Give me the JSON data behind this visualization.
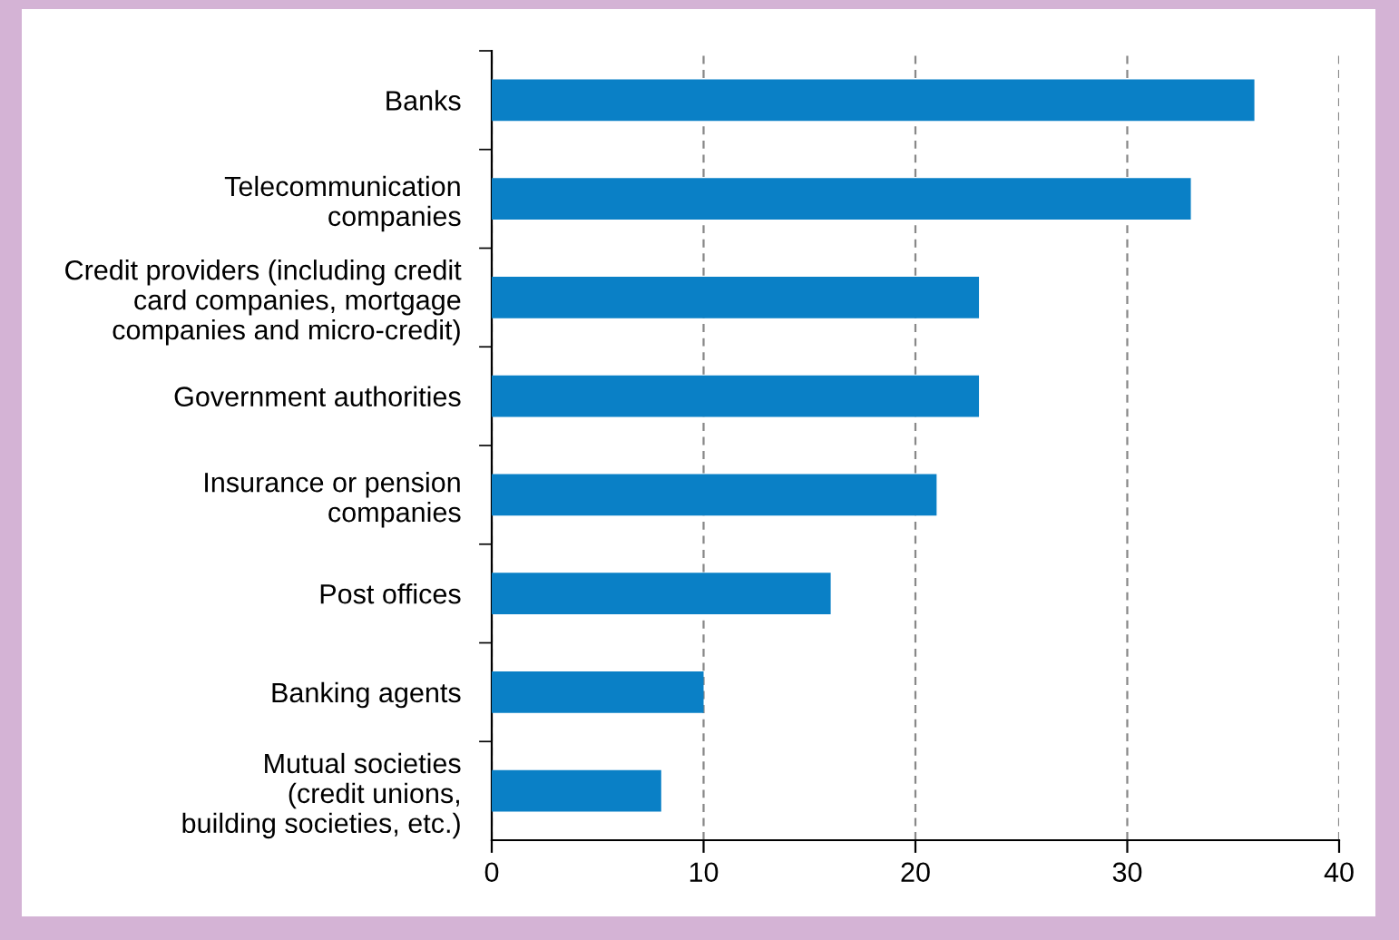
{
  "chart_data": {
    "type": "bar",
    "orientation": "horizontal",
    "categories": [
      "Banks",
      "Telecommunication\ncompanies",
      "Credit providers (including credit\ncard companies, mortgage\ncompanies and micro-credit)",
      "Government authorities",
      "Insurance or pension\ncompanies",
      "Post offices",
      "Banking agents",
      "Mutual societies\n(credit unions,\nbuilding societies, etc.)"
    ],
    "values": [
      36,
      33,
      23,
      23,
      21,
      16,
      10,
      8
    ],
    "color": "#0a80c6",
    "xlim": [
      0,
      40
    ],
    "xticks": [
      0,
      10,
      20,
      30,
      40
    ],
    "grid": "x",
    "legend": false
  }
}
